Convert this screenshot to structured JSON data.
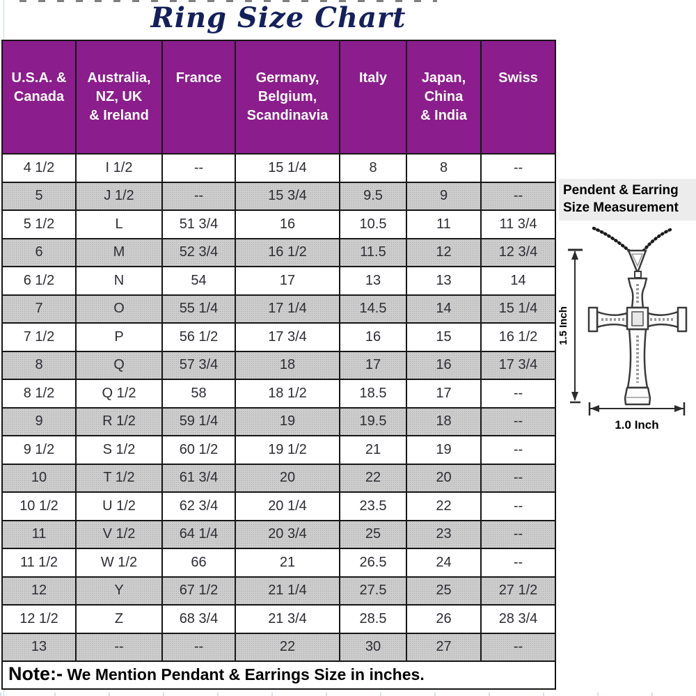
{
  "title": "Ring Size Chart",
  "chart_data": {
    "type": "table",
    "title": "Ring Size Chart",
    "columns": [
      "U.S.A. & Canada",
      "Australia, NZ, UK & Ireland",
      "France",
      "Germany, Belgium, Scandinavia",
      "Italy",
      "Japan, China & India",
      "Swiss"
    ],
    "rows": [
      [
        "4 1/2",
        "I 1/2",
        "--",
        "15 1/4",
        "8",
        "8",
        "--"
      ],
      [
        "5",
        "J 1/2",
        "--",
        "15 3/4",
        "9.5",
        "9",
        "--"
      ],
      [
        "5 1/2",
        "L",
        "51 3/4",
        "16",
        "10.5",
        "11",
        "11 3/4"
      ],
      [
        "6",
        "M",
        "52 3/4",
        "16 1/2",
        "11.5",
        "12",
        "12 3/4"
      ],
      [
        "6 1/2",
        "N",
        "54",
        "17",
        "13",
        "13",
        "14"
      ],
      [
        "7",
        "O",
        "55 1/4",
        "17 1/4",
        "14.5",
        "14",
        "15 1/4"
      ],
      [
        "7 1/2",
        "P",
        "56 1/2",
        "17 3/4",
        "16",
        "15",
        "16 1/2"
      ],
      [
        "8",
        "Q",
        "57 3/4",
        "18",
        "17",
        "16",
        "17 3/4"
      ],
      [
        "8 1/2",
        "Q 1/2",
        "58",
        "18 1/2",
        "18.5",
        "17",
        "--"
      ],
      [
        "9",
        "R 1/2",
        "59 1/4",
        "19",
        "19.5",
        "18",
        "--"
      ],
      [
        "9 1/2",
        "S 1/2",
        "60 1/2",
        "19 1/2",
        "21",
        "19",
        "--"
      ],
      [
        "10",
        "T 1/2",
        "61 3/4",
        "20",
        "22",
        "20",
        "--"
      ],
      [
        "10 1/2",
        "U 1/2",
        "62 3/4",
        "20 1/4",
        "23.5",
        "22",
        "--"
      ],
      [
        "11",
        "V 1/2",
        "64 1/4",
        "20 3/4",
        "25",
        "23",
        "--"
      ],
      [
        "11 1/2",
        "W 1/2",
        "66",
        "21",
        "26.5",
        "24",
        "--"
      ],
      [
        "12",
        "Y",
        "67 1/2",
        "21 1/4",
        "27.5",
        "25",
        "27 1/2"
      ],
      [
        "12 1/2",
        "Z",
        "68 3/4",
        "21 3/4",
        "28.5",
        "26",
        "28 3/4"
      ],
      [
        "13",
        "--",
        "--",
        "22",
        "30",
        "27",
        "--"
      ]
    ]
  },
  "table": {
    "headers_display": [
      "U.S.A. &\nCanada",
      "Australia,\nNZ, UK\n& Ireland",
      "France",
      "Germany,\nBelgium,\nScandinavia",
      "Italy",
      "Japan,\nChina\n& India",
      "Swiss"
    ]
  },
  "note": {
    "label": "Note:-",
    "text": " We Mention Pendant & Earrings Size in inches."
  },
  "side_panel": {
    "title_line1": "Pendent & Earring",
    "title_line2": "Size Measurement",
    "height_label": "1.5 Inch",
    "width_label": "1.0 Inch"
  },
  "colors": {
    "header_bg": "#8B1D8C",
    "alt_row": "#cdcdcd",
    "title_color": "#14205a"
  }
}
